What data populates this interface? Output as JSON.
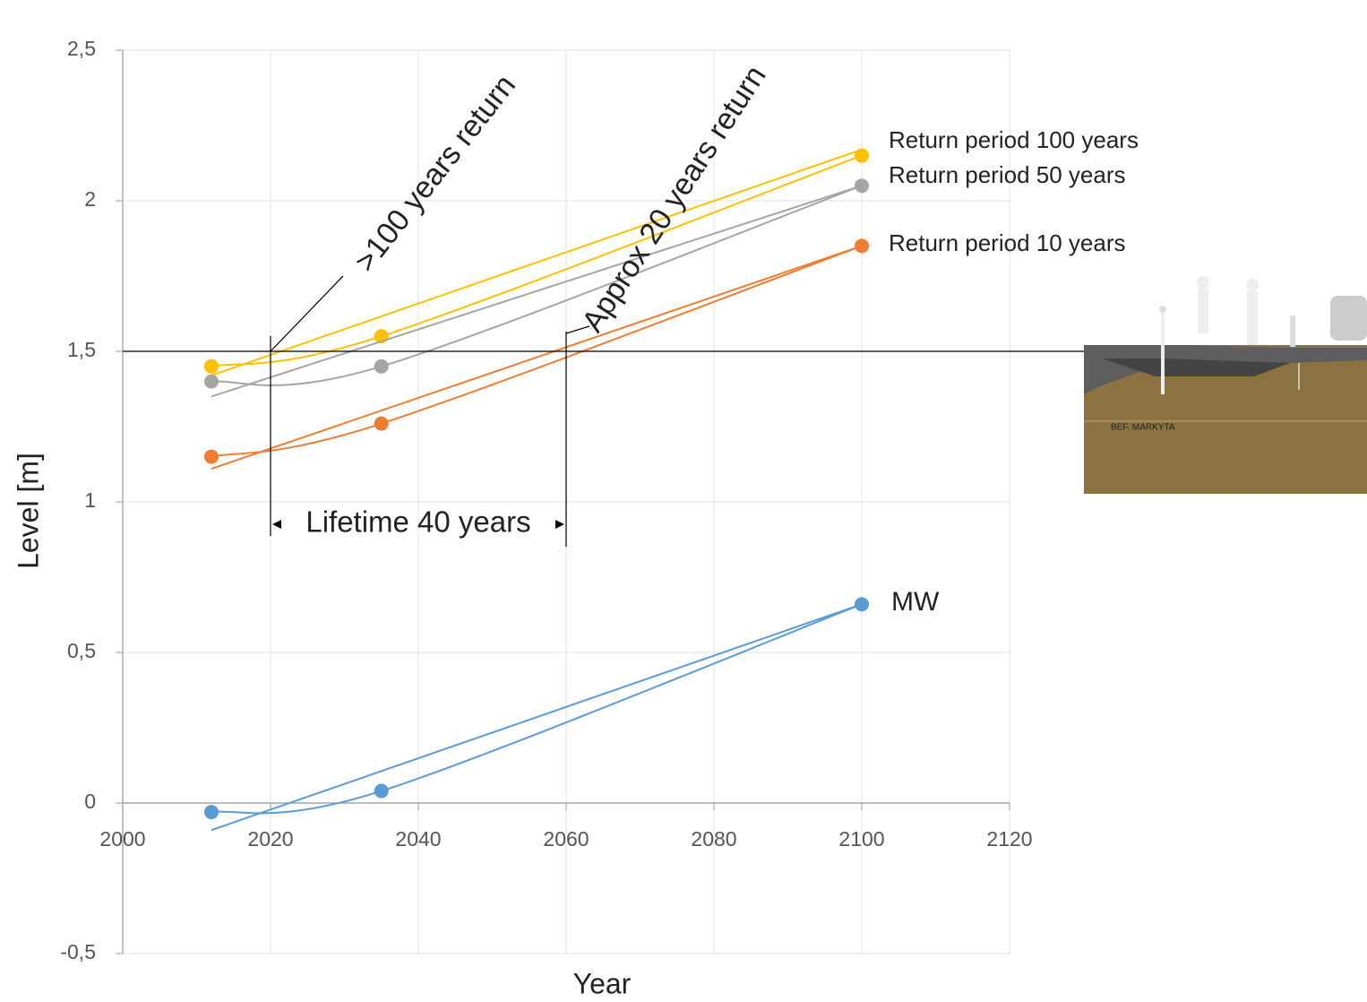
{
  "chart_data": {
    "type": "scatter",
    "xlabel": "Year",
    "ylabel": "Level [m]",
    "xlim": [
      2000,
      2120
    ],
    "xticks": [
      2000,
      2020,
      2040,
      2060,
      2080,
      2100,
      2120
    ],
    "ylim": [
      -0.5,
      2.5
    ],
    "yticks": [
      {
        "value": -0.5,
        "label": "-0,5"
      },
      0,
      {
        "value": 0.5,
        "label": "0,5"
      },
      1,
      {
        "value": 1.5,
        "label": "1,5"
      },
      2,
      {
        "value": 2.5,
        "label": "2,5"
      }
    ],
    "grid": true,
    "x": [
      2012,
      2035,
      2100
    ],
    "series": [
      {
        "name": "Return period 100 years",
        "color": "#ffc000",
        "values": [
          1.45,
          1.55,
          2.15
        ],
        "trendline": {
          "x": [
            2012,
            2100
          ],
          "values": [
            1.42,
            2.17
          ]
        }
      },
      {
        "name": "Return period 50 years",
        "color": "#a5a5a5",
        "values": [
          1.4,
          1.45,
          2.05
        ],
        "trendline": {
          "x": [
            2012,
            2100
          ],
          "values": [
            1.35,
            2.05
          ]
        }
      },
      {
        "name": "Return period 10 years",
        "color": "#ed7d31",
        "values": [
          1.15,
          1.26,
          1.85
        ],
        "trendline": {
          "x": [
            2012,
            2100
          ],
          "values": [
            1.11,
            1.85
          ]
        }
      },
      {
        "name": "MW",
        "color": "#5b9bd5",
        "values": [
          -0.03,
          0.04,
          0.66
        ],
        "trendline": {
          "x": [
            2012,
            2100
          ],
          "values": [
            -0.09,
            0.66
          ]
        }
      }
    ],
    "hline": 1.5,
    "vlines": [
      2020,
      2060
    ],
    "annotations": {
      "left_return": ">100 years return",
      "right_return": "Approx 20 years return",
      "lifetime": "Lifetime 40 years"
    },
    "illustration_label": "BEF. MARKYTA"
  }
}
